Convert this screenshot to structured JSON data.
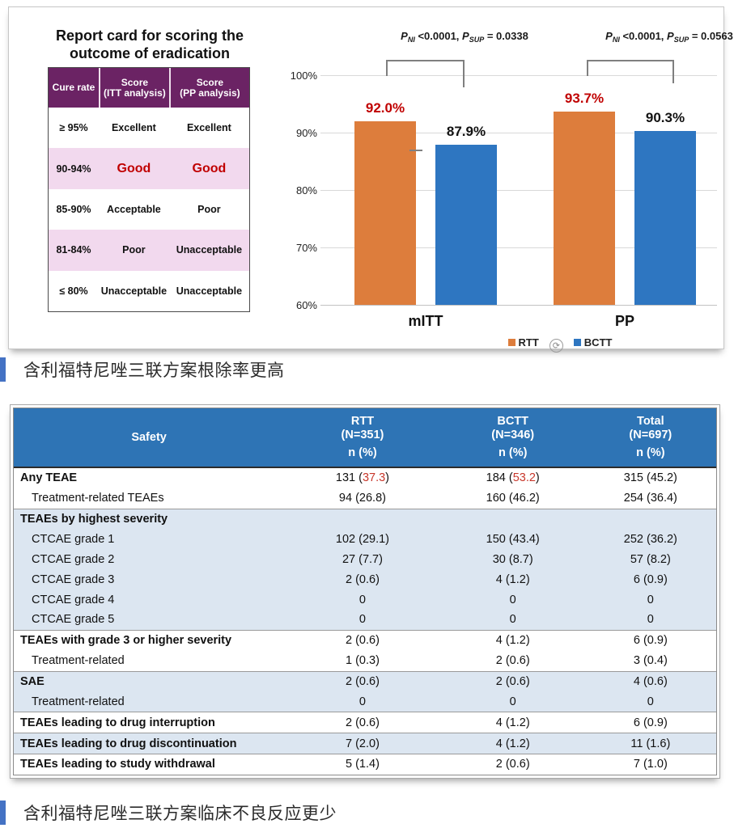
{
  "slide": {
    "report_card": {
      "title_line1": "Report card for scoring the",
      "title_line2": "outcome of eradication",
      "columns": [
        "Cure rate",
        "Score (ITT analysis)",
        "Score (PP analysis)"
      ],
      "rows": [
        {
          "cure_rate": "≥ 95%",
          "itt": "Excellent",
          "pp": "Excellent",
          "pink": false,
          "red": false
        },
        {
          "cure_rate": "90-94%",
          "itt": "Good",
          "pp": "Good",
          "pink": true,
          "red": true
        },
        {
          "cure_rate": "85-90%",
          "itt": "Acceptable",
          "pp": "Poor",
          "pink": false,
          "red": false
        },
        {
          "cure_rate": "81-84%",
          "itt": "Poor",
          "pp": "Unacceptable",
          "pink": true,
          "red": false
        },
        {
          "cure_rate": "≤ 80%",
          "itt": "Unacceptable",
          "pp": "Unacceptable",
          "pink": false,
          "red": false
        }
      ],
      "colors": {
        "header_bg": "#6B2364",
        "pink_row": "#F2D9EE",
        "red_text": "#C00000"
      }
    },
    "chart_data": {
      "type": "bar",
      "categories": [
        "mITT",
        "PP"
      ],
      "series": [
        {
          "name": "RTT",
          "color": "#DD7D3C",
          "values": [
            92.0,
            93.7
          ],
          "label_color": "#C00000"
        },
        {
          "name": "BCTT",
          "color": "#2E76C1",
          "values": [
            87.9,
            90.3
          ],
          "label_color": "#111111"
        }
      ],
      "value_labels": {
        "RTT": [
          "92.0%",
          "93.7%"
        ],
        "BCTT": [
          "87.9%",
          "90.3%"
        ]
      },
      "ylim": [
        60,
        100
      ],
      "yticks": [
        "100%",
        "90%",
        "80%",
        "70%",
        "60%"
      ],
      "grid": true,
      "legend_position": "bottom",
      "annotations": [
        {
          "segments": [
            {
              "text": "P",
              "style": "pi"
            },
            {
              "text": "NI",
              "style": "sub"
            },
            {
              "text": " <0.0001, ",
              "style": "plain"
            },
            {
              "text": "P",
              "style": "pi"
            },
            {
              "text": "SUP",
              "style": "sub"
            },
            {
              "text": " = 0.0338",
              "style": "plain"
            }
          ]
        },
        {
          "segments": [
            {
              "text": "P",
              "style": "pi"
            },
            {
              "text": "NI",
              "style": "sub"
            },
            {
              "text": " <0.0001, ",
              "style": "plain"
            },
            {
              "text": "P",
              "style": "pi"
            },
            {
              "text": "SUP",
              "style": "sub"
            },
            {
              "text": " = 0.0563",
              "style": "plain"
            }
          ]
        }
      ],
      "refresh_icon_glyph": "⟳"
    }
  },
  "captions": {
    "first": "含利福特尼唑三联方案根除率更高",
    "second": "含利福特尼唑三联方案临床不良反应更少"
  },
  "safety_table": {
    "header": {
      "col0": "Safety",
      "cols": [
        {
          "name": "RTT",
          "n": "(N=351)",
          "sub": "n (%)"
        },
        {
          "name": "BCTT",
          "n": "(N=346)",
          "sub": "n (%)"
        },
        {
          "name": "Total",
          "n": "(N=697)",
          "sub": "n (%)"
        }
      ]
    },
    "rows": [
      {
        "label": "Any TEAE",
        "bold": true,
        "indent": false,
        "bg": "white",
        "btop": false,
        "cells": [
          {
            "pre": "131 (",
            "red": "37.3",
            "post": ")"
          },
          {
            "pre": "184 (",
            "red": "53.2",
            "post": ")"
          },
          "315 (45.2)"
        ]
      },
      {
        "label": "Treatment-related TEAEs",
        "bold": false,
        "indent": true,
        "bg": "white",
        "btop": false,
        "cells": [
          "94 (26.8)",
          "160 (46.2)",
          "254 (36.4)"
        ]
      },
      {
        "label": "TEAEs by highest severity",
        "bold": true,
        "indent": false,
        "bg": "blue",
        "btop": true,
        "cells": [
          "",
          "",
          ""
        ]
      },
      {
        "label": "CTCAE grade 1",
        "bold": false,
        "indent": true,
        "bg": "blue",
        "btop": false,
        "cells": [
          "102 (29.1)",
          "150 (43.4)",
          "252 (36.2)"
        ]
      },
      {
        "label": "CTCAE grade 2",
        "bold": false,
        "indent": true,
        "bg": "blue",
        "btop": false,
        "cells": [
          "27 (7.7)",
          "30 (8.7)",
          "57 (8.2)"
        ]
      },
      {
        "label": "CTCAE grade 3",
        "bold": false,
        "indent": true,
        "bg": "blue",
        "btop": false,
        "cells": [
          "2 (0.6)",
          "4 (1.2)",
          "6 (0.9)"
        ]
      },
      {
        "label": "CTCAE grade 4",
        "bold": false,
        "indent": true,
        "bg": "blue",
        "btop": false,
        "cells": [
          "0",
          "0",
          "0"
        ]
      },
      {
        "label": "CTCAE grade 5",
        "bold": false,
        "indent": true,
        "bg": "blue",
        "btop": false,
        "cells": [
          "0",
          "0",
          "0"
        ]
      },
      {
        "label": "TEAEs with grade 3 or higher severity",
        "bold": true,
        "indent": false,
        "bg": "white",
        "btop": true,
        "cells": [
          "2 (0.6)",
          "4 (1.2)",
          "6 (0.9)"
        ]
      },
      {
        "label": "Treatment-related",
        "bold": false,
        "indent": true,
        "bg": "white",
        "btop": false,
        "cells": [
          "1 (0.3)",
          "2 (0.6)",
          "3 (0.4)"
        ]
      },
      {
        "label": "SAE",
        "bold": true,
        "indent": false,
        "bg": "blue",
        "btop": true,
        "cells": [
          "2 (0.6)",
          "2 (0.6)",
          "4 (0.6)"
        ]
      },
      {
        "label": "Treatment-related",
        "bold": false,
        "indent": true,
        "bg": "blue",
        "btop": false,
        "cells": [
          "0",
          "0",
          "0"
        ]
      },
      {
        "label": "TEAEs leading to drug interruption",
        "bold": true,
        "indent": false,
        "bg": "white",
        "btop": true,
        "cells": [
          "2 (0.6)",
          "4 (1.2)",
          "6 (0.9)"
        ]
      },
      {
        "label": "TEAEs leading to drug discontinuation",
        "bold": true,
        "indent": false,
        "bg": "blue",
        "btop": true,
        "cells": [
          "7 (2.0)",
          "4 (1.2)",
          "11 (1.6)"
        ]
      },
      {
        "label": "TEAEs leading to study withdrawal",
        "bold": true,
        "indent": false,
        "bg": "white",
        "btop": true,
        "cells": [
          "5 (1.4)",
          "2 (0.6)",
          "7 (1.0)"
        ]
      }
    ]
  }
}
